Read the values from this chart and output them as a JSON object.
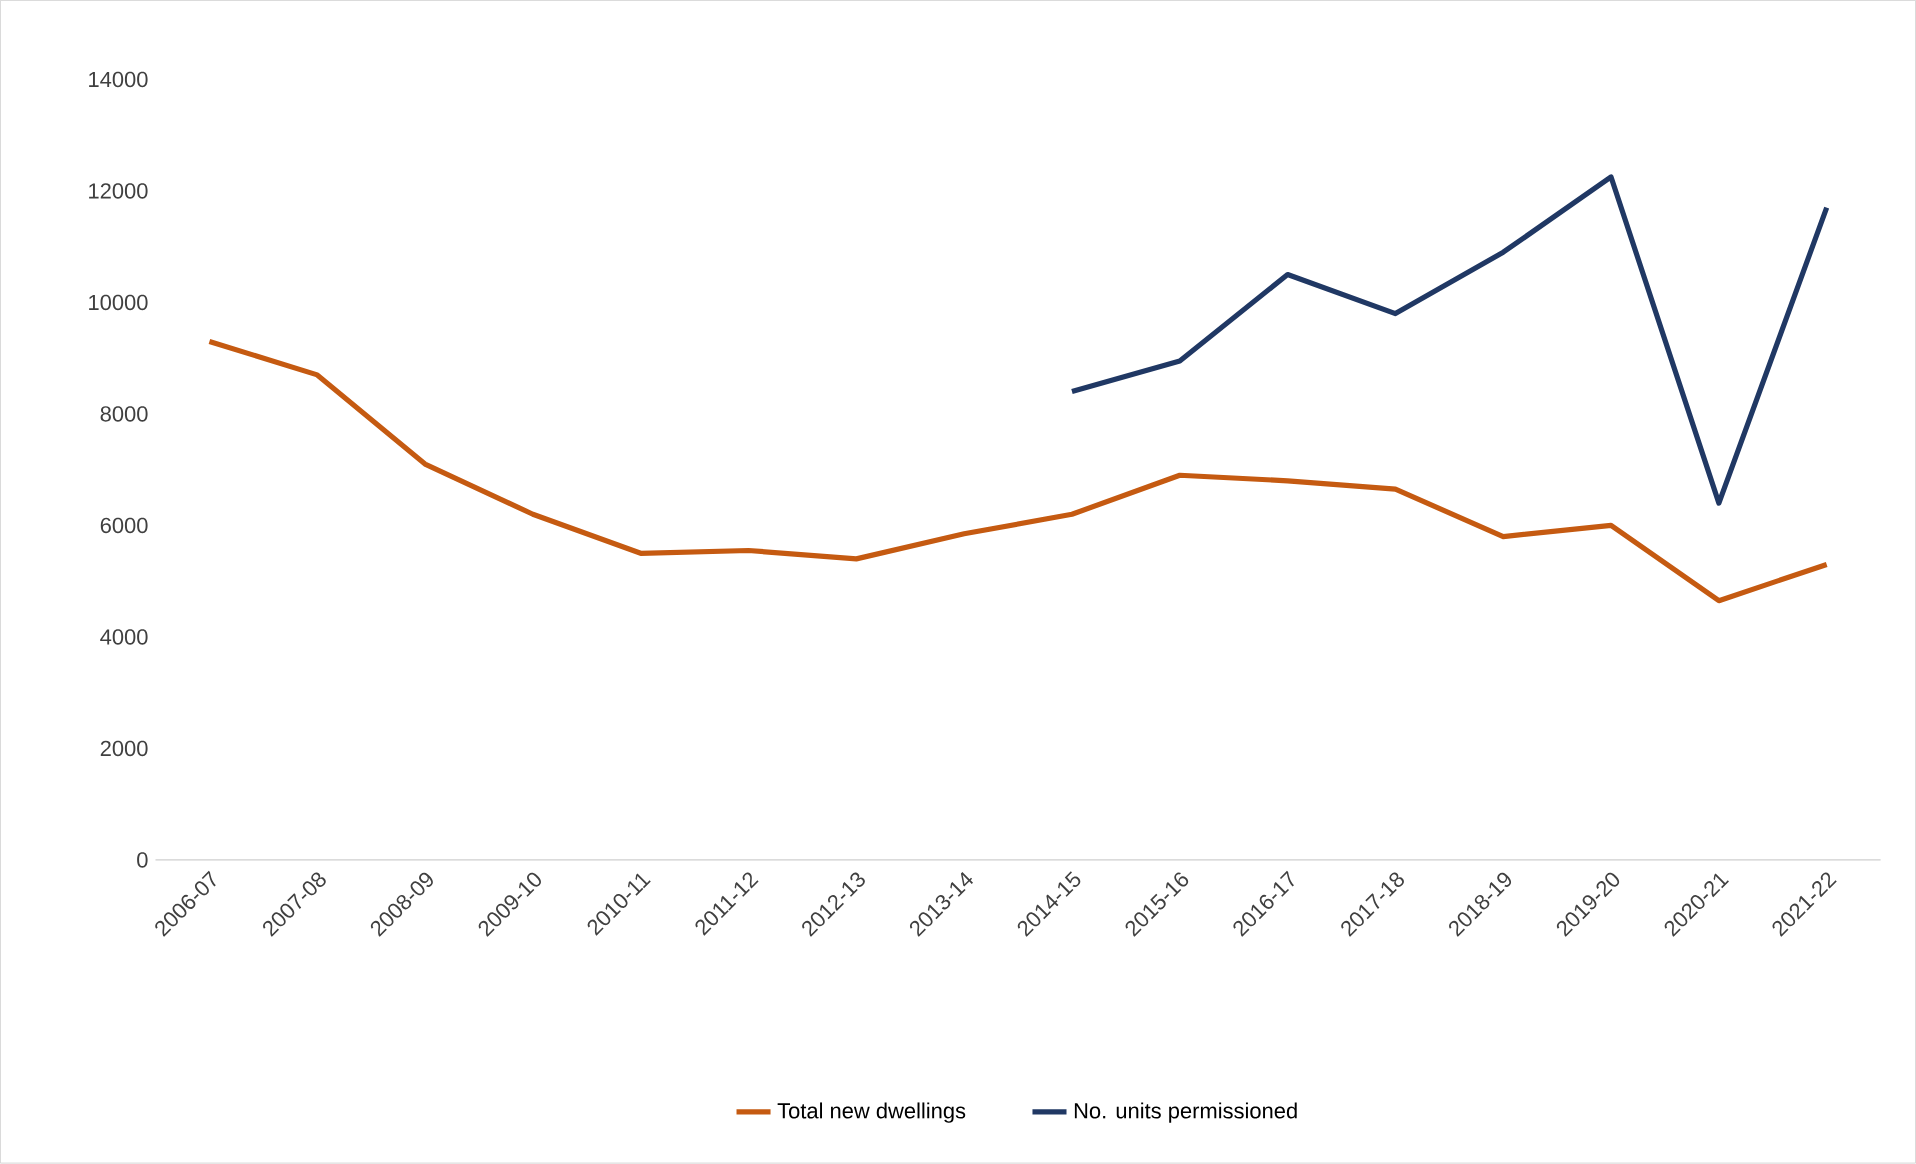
{
  "chart_data": {
    "type": "line",
    "categories": [
      "2006-07",
      "2007-08",
      "2008-09",
      "2009-10",
      "2010-11",
      "2011-12",
      "2012-13",
      "2013-14",
      "2014-15",
      "2015-16",
      "2016-17",
      "2017-18",
      "2018-19",
      "2019-20",
      "2020-21",
      "2021-22"
    ],
    "series": [
      {
        "name": "Total new dwellings",
        "color": "#c55a11",
        "values": [
          9300,
          8700,
          7100,
          6200,
          5500,
          5550,
          5400,
          5850,
          6200,
          6900,
          6800,
          6650,
          5800,
          6000,
          4650,
          5300
        ]
      },
      {
        "name": "No. units permissioned",
        "color": "#203864",
        "values": [
          null,
          null,
          null,
          null,
          null,
          null,
          null,
          null,
          8400,
          8950,
          10500,
          9800,
          10900,
          12250,
          6400,
          11700
        ]
      }
    ],
    "ylim": [
      0,
      14000
    ],
    "yticks": [
      0,
      2000,
      4000,
      6000,
      8000,
      10000,
      12000,
      14000
    ],
    "grid": false,
    "legend": "bottom",
    "marker": "none",
    "line_style": "solid"
  }
}
